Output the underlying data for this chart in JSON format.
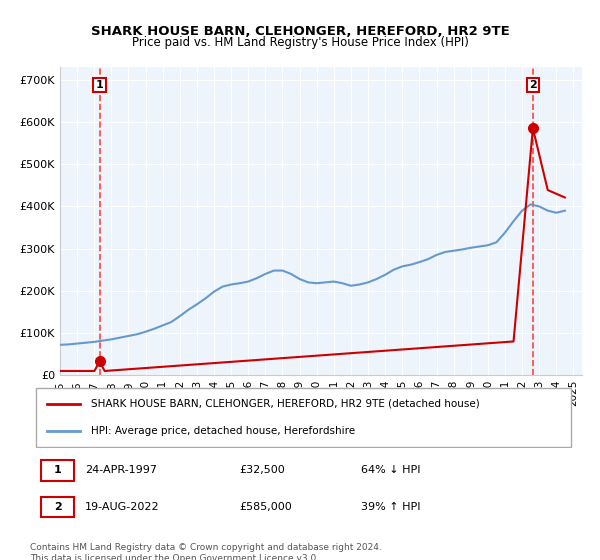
{
  "title": "SHARK HOUSE BARN, CLEHONGER, HEREFORD, HR2 9TE",
  "subtitle": "Price paid vs. HM Land Registry's House Price Index (HPI)",
  "ylabel_values": [
    "£0",
    "£100K",
    "£200K",
    "£300K",
    "£400K",
    "£500K",
    "£600K",
    "£700K"
  ],
  "ylim": [
    0,
    700000
  ],
  "xlim_start": 1995.0,
  "xlim_end": 2025.5,
  "hpi_color": "#6699cc",
  "sale_color": "#cc0000",
  "dashed_color": "#ff4444",
  "background_color": "#eef4fb",
  "legend_label_sale": "SHARK HOUSE BARN, CLEHONGER, HEREFORD, HR2 9TE (detached house)",
  "legend_label_hpi": "HPI: Average price, detached house, Herefordshire",
  "sale1_year": 1997.31,
  "sale1_price": 32500,
  "sale1_label": "1",
  "sale2_year": 2022.63,
  "sale2_price": 585000,
  "sale2_label": "2",
  "table_data": [
    [
      "1",
      "24-APR-1997",
      "£32,500",
      "64% ↓ HPI"
    ],
    [
      "2",
      "19-AUG-2022",
      "£585,000",
      "39% ↑ HPI"
    ]
  ],
  "footer": "Contains HM Land Registry data © Crown copyright and database right 2024.\nThis data is licensed under the Open Government Licence v3.0.",
  "hpi_years": [
    1995,
    1995.5,
    1996,
    1996.5,
    1997,
    1997.5,
    1998,
    1998.5,
    1999,
    1999.5,
    2000,
    2000.5,
    2001,
    2001.5,
    2002,
    2002.5,
    2003,
    2003.5,
    2004,
    2004.5,
    2005,
    2005.5,
    2006,
    2006.5,
    2007,
    2007.5,
    2008,
    2008.5,
    2009,
    2009.5,
    2010,
    2010.5,
    2011,
    2011.5,
    2012,
    2012.5,
    2013,
    2013.5,
    2014,
    2014.5,
    2015,
    2015.5,
    2016,
    2016.5,
    2017,
    2017.5,
    2018,
    2018.5,
    2019,
    2019.5,
    2020,
    2020.5,
    2021,
    2021.5,
    2022,
    2022.5,
    2023,
    2023.5,
    2024,
    2024.5
  ],
  "hpi_values": [
    72000,
    73000,
    75000,
    77000,
    79000,
    82000,
    85000,
    89000,
    93000,
    97000,
    103000,
    110000,
    118000,
    126000,
    140000,
    155000,
    168000,
    182000,
    198000,
    210000,
    215000,
    218000,
    222000,
    230000,
    240000,
    248000,
    248000,
    240000,
    228000,
    220000,
    218000,
    220000,
    222000,
    218000,
    212000,
    215000,
    220000,
    228000,
    238000,
    250000,
    258000,
    262000,
    268000,
    275000,
    285000,
    292000,
    295000,
    298000,
    302000,
    305000,
    308000,
    315000,
    338000,
    365000,
    390000,
    405000,
    400000,
    390000,
    385000,
    390000
  ],
  "xtick_years": [
    1995,
    1996,
    1997,
    1998,
    1999,
    2000,
    2001,
    2002,
    2003,
    2004,
    2005,
    2006,
    2007,
    2008,
    2009,
    2010,
    2011,
    2012,
    2013,
    2014,
    2015,
    2016,
    2017,
    2018,
    2019,
    2020,
    2021,
    2022,
    2023,
    2024,
    2025
  ]
}
